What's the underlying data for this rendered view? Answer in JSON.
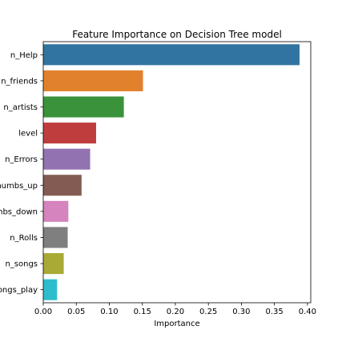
{
  "chart_data": {
    "type": "bar",
    "orientation": "horizontal",
    "title": "Feature Importance on Decision Tree model",
    "xlabel": "Importance",
    "ylabel": "",
    "xlim": [
      0,
      0.405
    ],
    "xticks": [
      0.0,
      0.05,
      0.1,
      0.15,
      0.2,
      0.25,
      0.3,
      0.35,
      0.4
    ],
    "xtick_labels": [
      "0.00",
      "0.05",
      "0.10",
      "0.15",
      "0.20",
      "0.25",
      "0.30",
      "0.35",
      "0.40"
    ],
    "categories": [
      "n_Help",
      "n_friends",
      "n_artists",
      "level",
      "n_Errors",
      "n_thumbs_up",
      "n_thumbs_down",
      "n_Rolls",
      "n_songs",
      "n_songs_play"
    ],
    "values": [
      0.388,
      0.151,
      0.122,
      0.08,
      0.071,
      0.058,
      0.038,
      0.037,
      0.031,
      0.021
    ],
    "colors": [
      "#3274a1",
      "#e1812c",
      "#3a923a",
      "#c03d3e",
      "#9372b2",
      "#845b53",
      "#d684bd",
      "#7f7f7f",
      "#a9aa35",
      "#2ebdcd"
    ],
    "grid": false,
    "legend": "none"
  }
}
